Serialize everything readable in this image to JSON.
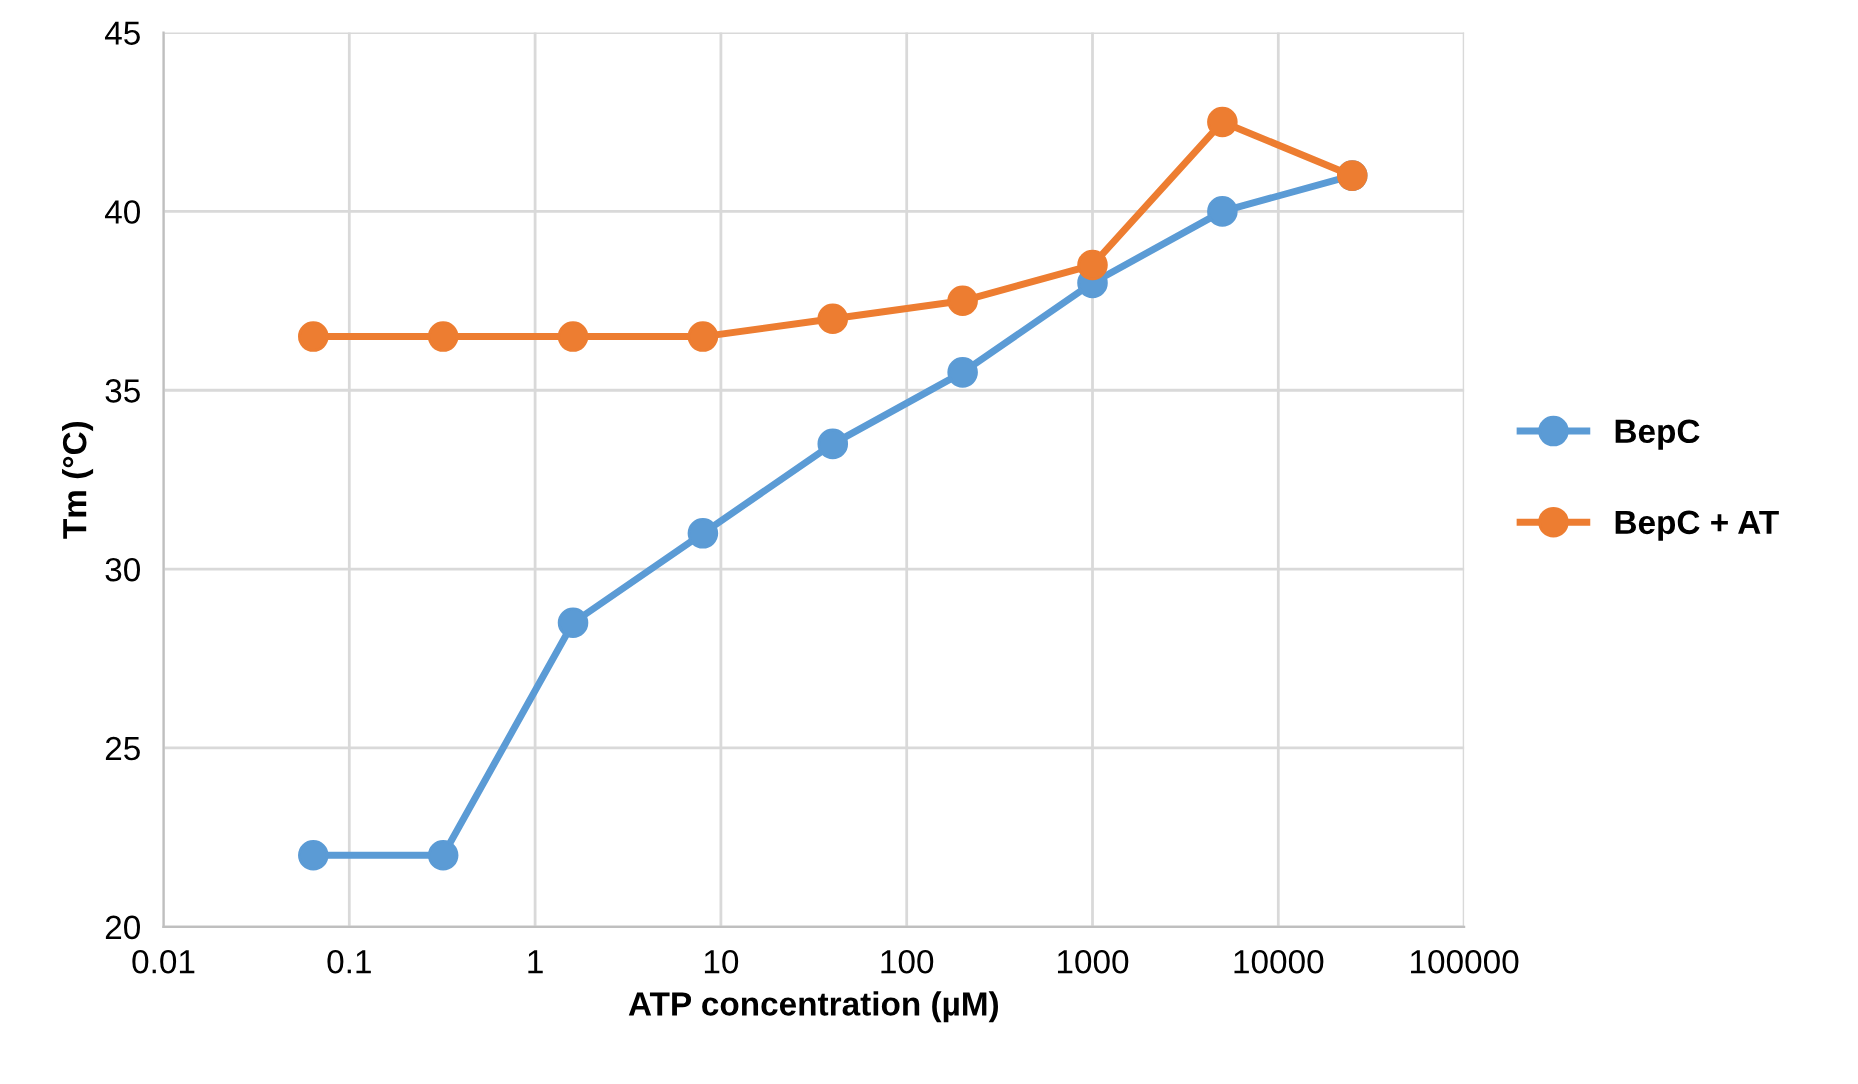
{
  "chart_data": {
    "type": "line",
    "xlabel": "ATP concentration (µM)",
    "ylabel": "Tm (°C)",
    "log": "x",
    "x": [
      0.064,
      0.32,
      1.6,
      8,
      40,
      200,
      1000,
      5000,
      25000
    ],
    "series": [
      {
        "name": "BepC",
        "color": "#5b9bd5",
        "values": [
          22,
          22,
          28.5,
          31,
          33.5,
          35.5,
          38,
          40,
          41
        ]
      },
      {
        "name": "BepC + AT",
        "color": "#ed7d31",
        "values": [
          36.5,
          36.5,
          36.5,
          36.5,
          37,
          37.5,
          38.5,
          42.5,
          41
        ]
      }
    ],
    "xlim": [
      0.01,
      100000
    ],
    "xticks": [
      {
        "value": 0.01,
        "label": "0.01"
      },
      {
        "value": 0.1,
        "label": "0.1"
      },
      1,
      10,
      100,
      1000,
      10000,
      100000
    ],
    "ylim": [
      20,
      45
    ],
    "yticks": [
      20,
      25,
      30,
      35,
      40,
      45
    ],
    "grid": true,
    "legend": "right",
    "marker": "circle",
    "line_style": "solid"
  }
}
